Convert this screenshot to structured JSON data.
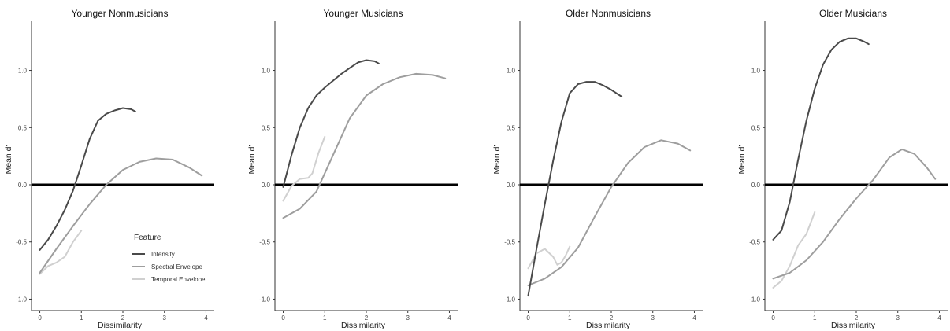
{
  "chart_data": [
    {
      "type": "line",
      "title": "Younger Nonmusicians",
      "xlabel": "Dissimilarity",
      "ylabel": "Mean d'",
      "xlim": [
        -0.2,
        4.2
      ],
      "ylim": [
        -1.1,
        1.43
      ],
      "xticks": [
        0,
        1,
        2,
        3,
        4
      ],
      "yticks": [
        -1.0,
        -0.5,
        0.0,
        0.5,
        1.0
      ],
      "ytick_labels": [
        "-1.0",
        "-0.5",
        "0.0",
        "0.5",
        "1.0"
      ],
      "xtick_labels": [
        "0",
        "1",
        "2",
        "3",
        "4"
      ],
      "reference_line_y": 0,
      "grid": false,
      "legend": {
        "title": "Feature",
        "placement": "bottom-right",
        "entries": [
          "Intensity",
          "Spectral Envelope",
          "Temporal Envelope"
        ]
      },
      "series": [
        {
          "name": "Intensity",
          "color": "#4a4a4a",
          "x": [
            0.0,
            0.2,
            0.4,
            0.6,
            0.8,
            1.0,
            1.2,
            1.4,
            1.6,
            1.8,
            2.0,
            2.2,
            2.3
          ],
          "y": [
            -0.57,
            -0.48,
            -0.36,
            -0.22,
            -0.05,
            0.17,
            0.4,
            0.56,
            0.62,
            0.65,
            0.67,
            0.66,
            0.64
          ]
        },
        {
          "name": "Spectral Envelope",
          "color": "#9e9e9e",
          "x": [
            0.0,
            0.4,
            0.8,
            1.2,
            1.6,
            2.0,
            2.4,
            2.8,
            3.2,
            3.6,
            3.9
          ],
          "y": [
            -0.77,
            -0.56,
            -0.36,
            -0.17,
            0.0,
            0.13,
            0.2,
            0.23,
            0.22,
            0.15,
            0.08
          ]
        },
        {
          "name": "Temporal Envelope",
          "color": "#d0d0d0",
          "x": [
            0.0,
            0.2,
            0.4,
            0.6,
            0.8,
            1.0
          ],
          "y": [
            -0.78,
            -0.71,
            -0.68,
            -0.63,
            -0.5,
            -0.4
          ]
        }
      ]
    },
    {
      "type": "line",
      "title": "Younger Musicians",
      "xlabel": "Dissimilarity",
      "ylabel": "Mean d'",
      "xlim": [
        -0.2,
        4.2
      ],
      "ylim": [
        -1.1,
        1.43
      ],
      "xticks": [
        0,
        1,
        2,
        3,
        4
      ],
      "yticks": [
        -1.0,
        -0.5,
        0.0,
        0.5,
        1.0
      ],
      "ytick_labels": [
        "-1.0",
        "-0.5",
        "0.0",
        "0.5",
        "1.0"
      ],
      "xtick_labels": [
        "0",
        "1",
        "2",
        "3",
        "4"
      ],
      "reference_line_y": 0,
      "grid": false,
      "series": [
        {
          "name": "Intensity",
          "color": "#4a4a4a",
          "x": [
            0.0,
            0.2,
            0.4,
            0.6,
            0.8,
            1.0,
            1.2,
            1.4,
            1.6,
            1.8,
            2.0,
            2.2,
            2.3
          ],
          "y": [
            -0.02,
            0.26,
            0.5,
            0.67,
            0.78,
            0.85,
            0.91,
            0.97,
            1.02,
            1.07,
            1.09,
            1.08,
            1.06
          ]
        },
        {
          "name": "Spectral Envelope",
          "color": "#9e9e9e",
          "x": [
            0.0,
            0.4,
            0.8,
            1.2,
            1.6,
            2.0,
            2.4,
            2.8,
            3.2,
            3.6,
            3.9
          ],
          "y": [
            -0.29,
            -0.21,
            -0.06,
            0.26,
            0.58,
            0.78,
            0.88,
            0.94,
            0.97,
            0.96,
            0.93
          ]
        },
        {
          "name": "Temporal Envelope",
          "color": "#d0d0d0",
          "x": [
            0.0,
            0.2,
            0.4,
            0.6,
            0.7,
            0.85,
            1.0
          ],
          "y": [
            -0.14,
            -0.01,
            0.05,
            0.06,
            0.1,
            0.28,
            0.42
          ]
        }
      ]
    },
    {
      "type": "line",
      "title": "Older Nonmusicians",
      "xlabel": "Dissimilarity",
      "ylabel": "Mean d'",
      "xlim": [
        -0.2,
        4.2
      ],
      "ylim": [
        -1.1,
        1.43
      ],
      "xticks": [
        0,
        1,
        2,
        3,
        4
      ],
      "yticks": [
        -1.0,
        -0.5,
        0.0,
        0.5,
        1.0
      ],
      "ytick_labels": [
        "-1.0",
        "-0.5",
        "0.0",
        "0.5",
        "1.0"
      ],
      "xtick_labels": [
        "0",
        "1",
        "2",
        "3",
        "4"
      ],
      "reference_line_y": 0,
      "grid": false,
      "series": [
        {
          "name": "Intensity",
          "color": "#4a4a4a",
          "x": [
            0.0,
            0.2,
            0.4,
            0.6,
            0.8,
            1.0,
            1.2,
            1.4,
            1.6,
            1.8,
            2.0,
            2.25
          ],
          "y": [
            -0.97,
            -0.56,
            -0.17,
            0.21,
            0.55,
            0.8,
            0.88,
            0.9,
            0.9,
            0.87,
            0.83,
            0.77
          ]
        },
        {
          "name": "Spectral Envelope",
          "color": "#9e9e9e",
          "x": [
            0.0,
            0.4,
            0.8,
            1.2,
            1.6,
            2.0,
            2.4,
            2.8,
            3.2,
            3.6,
            3.9
          ],
          "y": [
            -0.88,
            -0.82,
            -0.72,
            -0.55,
            -0.28,
            -0.02,
            0.19,
            0.33,
            0.39,
            0.36,
            0.3
          ]
        },
        {
          "name": "Temporal Envelope",
          "color": "#d0d0d0",
          "x": [
            0.0,
            0.2,
            0.4,
            0.6,
            0.7,
            0.8,
            0.9,
            1.0
          ],
          "y": [
            -0.73,
            -0.6,
            -0.56,
            -0.63,
            -0.7,
            -0.68,
            -0.62,
            -0.54
          ]
        }
      ]
    },
    {
      "type": "line",
      "title": "Older Musicians",
      "xlabel": "Dissimilarity",
      "ylabel": "Mean d'",
      "xlim": [
        -0.2,
        4.2
      ],
      "ylim": [
        -1.1,
        1.43
      ],
      "xticks": [
        0,
        1,
        2,
        3,
        4
      ],
      "yticks": [
        -1.0,
        -0.5,
        0.0,
        0.5,
        1.0
      ],
      "ytick_labels": [
        "-1.0",
        "-0.5",
        "0.0",
        "0.5",
        "1.0"
      ],
      "xtick_labels": [
        "0",
        "1",
        "2",
        "3",
        "4"
      ],
      "reference_line_y": 0,
      "grid": false,
      "series": [
        {
          "name": "Intensity",
          "color": "#4a4a4a",
          "x": [
            0.0,
            0.2,
            0.4,
            0.6,
            0.8,
            1.0,
            1.2,
            1.4,
            1.6,
            1.8,
            2.0,
            2.2,
            2.3
          ],
          "y": [
            -0.48,
            -0.4,
            -0.15,
            0.22,
            0.56,
            0.84,
            1.05,
            1.18,
            1.25,
            1.28,
            1.28,
            1.25,
            1.23
          ]
        },
        {
          "name": "Spectral Envelope",
          "color": "#9e9e9e",
          "x": [
            0.0,
            0.4,
            0.8,
            1.2,
            1.6,
            2.0,
            2.4,
            2.8,
            3.1,
            3.4,
            3.7,
            3.9
          ],
          "y": [
            -0.82,
            -0.77,
            -0.66,
            -0.5,
            -0.3,
            -0.12,
            0.04,
            0.24,
            0.31,
            0.27,
            0.15,
            0.05
          ]
        },
        {
          "name": "Temporal Envelope",
          "color": "#d0d0d0",
          "x": [
            0.0,
            0.2,
            0.4,
            0.6,
            0.8,
            1.0
          ],
          "y": [
            -0.9,
            -0.84,
            -0.71,
            -0.53,
            -0.43,
            -0.24
          ]
        }
      ]
    }
  ]
}
